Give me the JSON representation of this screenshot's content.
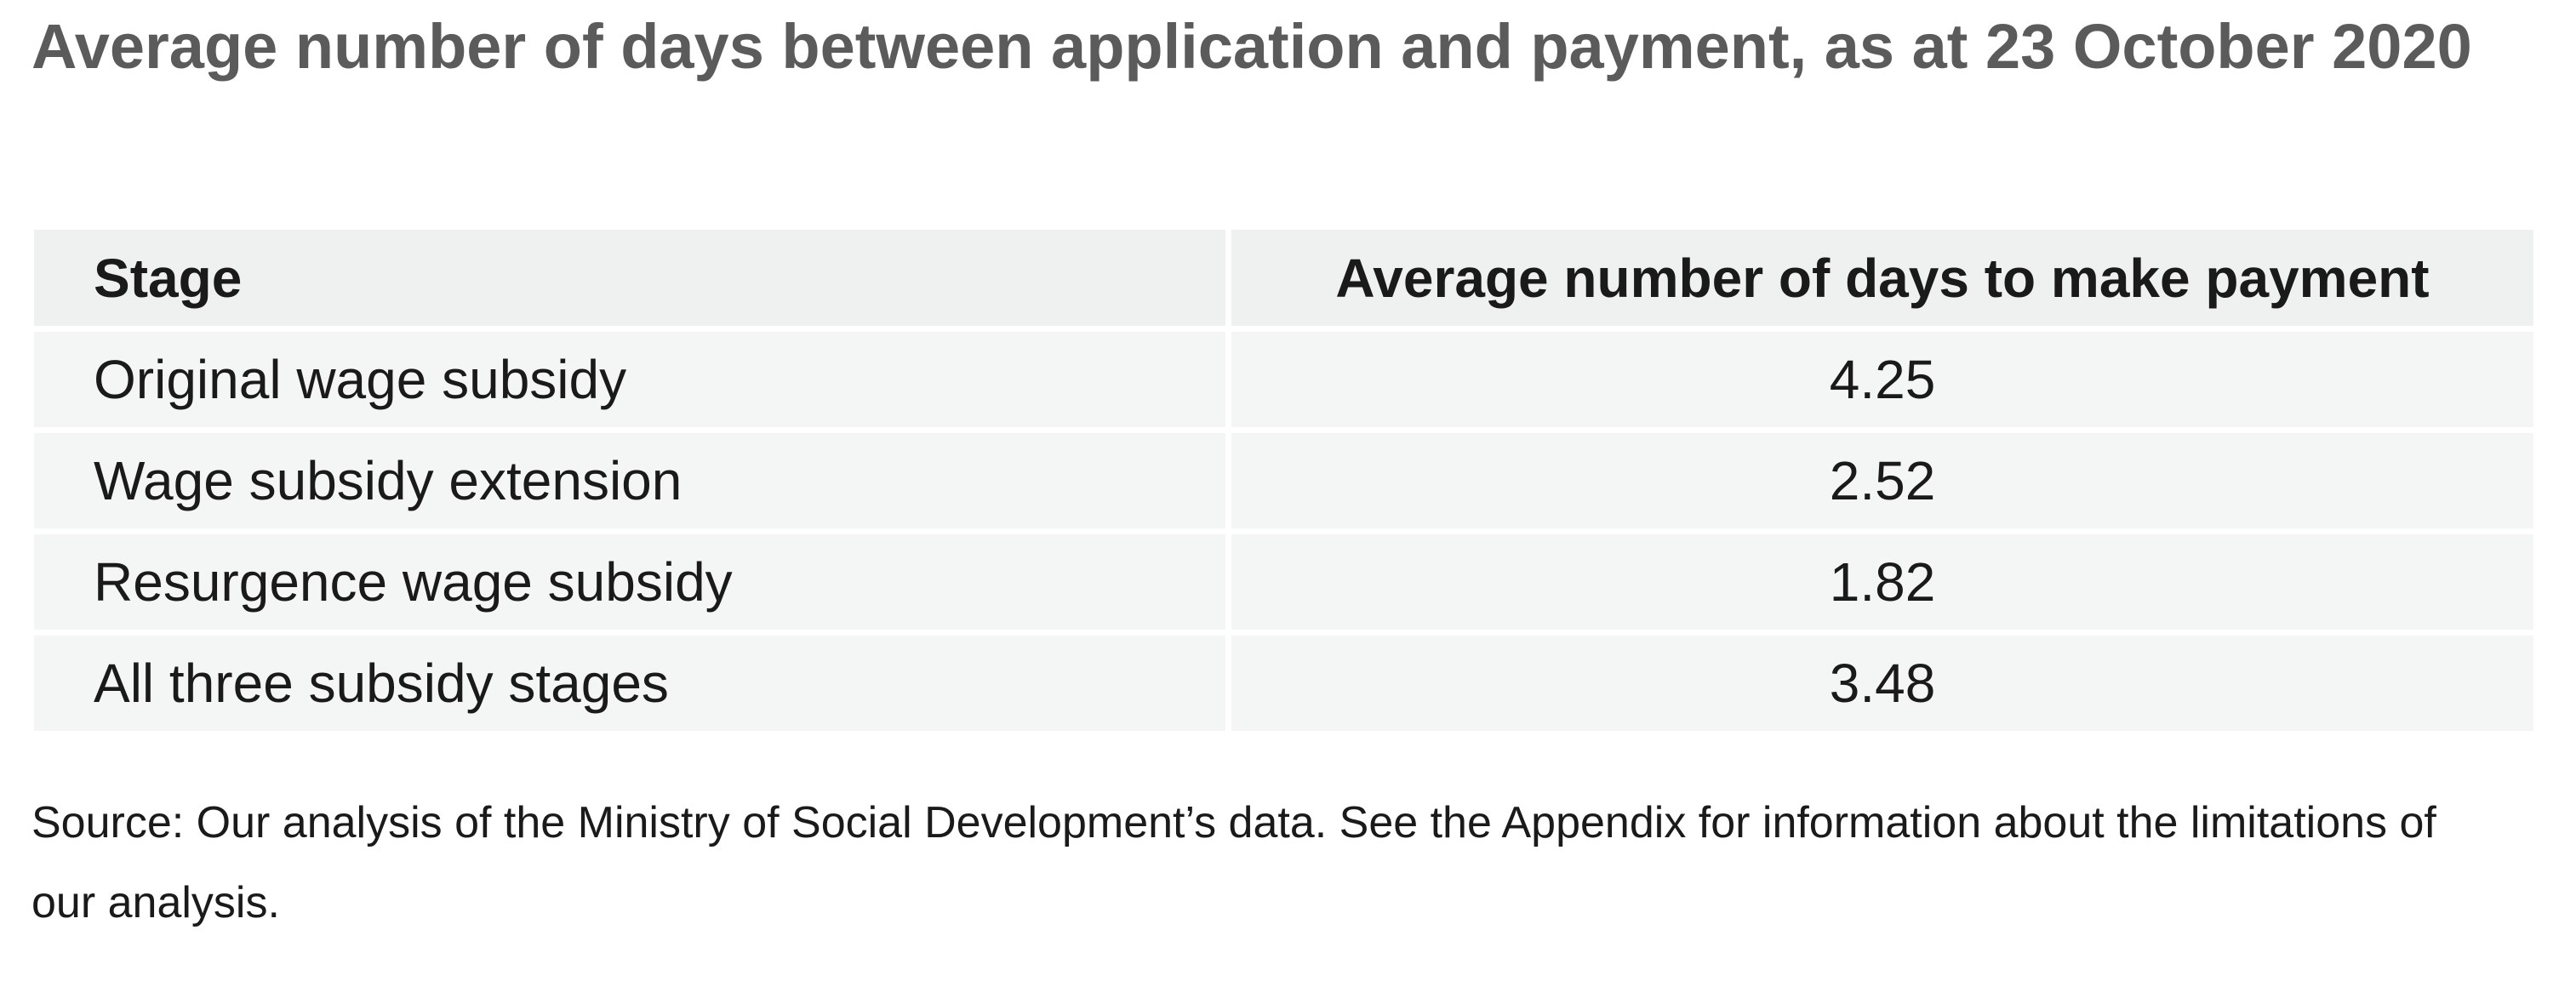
{
  "title": "Average number of days between application and payment, as at 23 October 2020",
  "table": {
    "headers": [
      "Stage",
      "Average number of days to make payment"
    ],
    "rows": [
      [
        "Original wage subsidy",
        "4.25"
      ],
      [
        "Wage subsidy extension",
        "2.52"
      ],
      [
        "Resurgence wage subsidy",
        "1.82"
      ],
      [
        "All three subsidy stages",
        "3.48"
      ]
    ]
  },
  "source": "Source: Our analysis of the Ministry of Social Development’s data. See the Appendix for information about the limitations of our analysis.",
  "colors": {
    "title": "#5b5b5b",
    "header_fill": "#eef1ef",
    "row_fill": "#f4f6f5",
    "text": "#1a1a1a"
  }
}
